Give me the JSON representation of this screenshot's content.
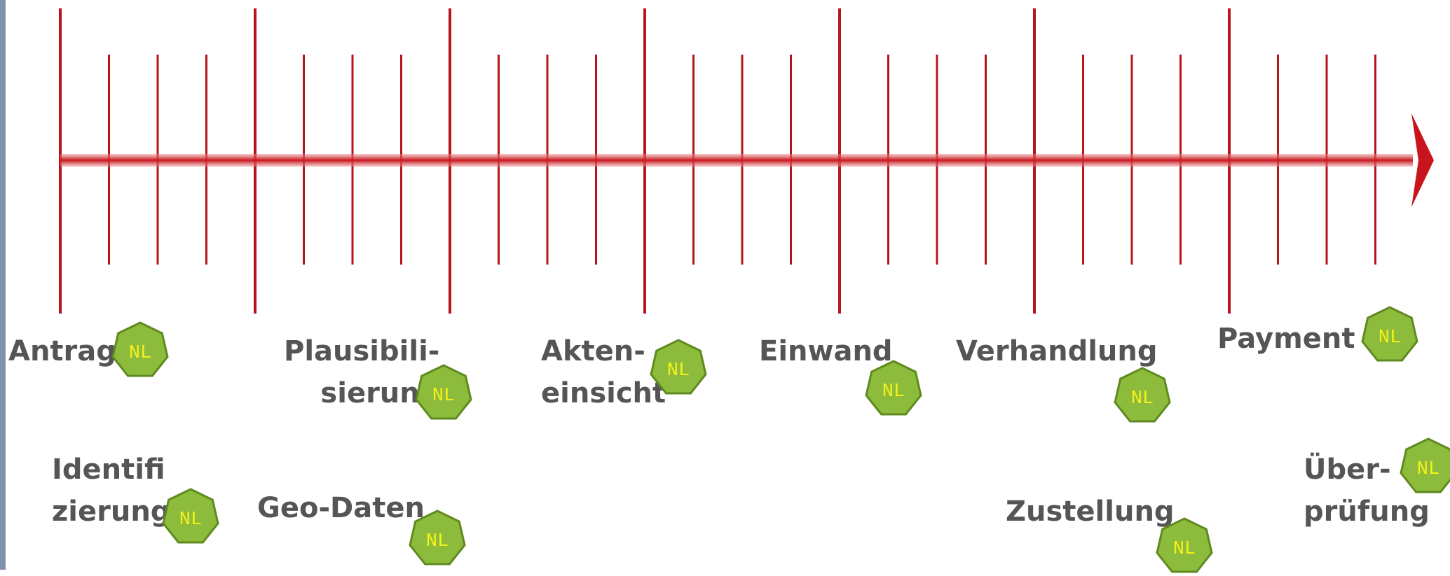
{
  "colors": {
    "axis": "#c8141c",
    "tick": "#b8141c",
    "label": "#555555",
    "badge_fill": "#8dbb3c",
    "badge_stroke": "#5e8a1f",
    "badge_text": "#f5f21a",
    "left_strip": "#8090ad"
  },
  "timeline": {
    "direction": "right-arrow",
    "major_ticks": 7,
    "minor_ticks_between_major": 3
  },
  "steps": [
    {
      "id": "antrag",
      "lines": [
        "Antrag"
      ],
      "badge": "NL"
    },
    {
      "id": "identifizierung",
      "lines": [
        "Identifi",
        "zierung"
      ],
      "badge": "NL"
    },
    {
      "id": "plausibilisierung",
      "lines": [
        "Plausibili-",
        "sierung"
      ],
      "badge": "NL"
    },
    {
      "id": "geo-daten",
      "lines": [
        "Geo-Daten"
      ],
      "badge": "NL"
    },
    {
      "id": "akteneinsicht",
      "lines": [
        "Akten-",
        "einsicht"
      ],
      "badge": "NL"
    },
    {
      "id": "einwand",
      "lines": [
        "Einwand"
      ],
      "badge": "NL"
    },
    {
      "id": "verhandlung",
      "lines": [
        "Verhandlung"
      ],
      "badge": "NL"
    },
    {
      "id": "zustellung",
      "lines": [
        "Zustellung"
      ],
      "badge": "NL"
    },
    {
      "id": "payment",
      "lines": [
        "Payment"
      ],
      "badge": "NL"
    },
    {
      "id": "ueberpruefung",
      "lines": [
        "Über-",
        "prüfung"
      ],
      "badge": "NL"
    }
  ]
}
